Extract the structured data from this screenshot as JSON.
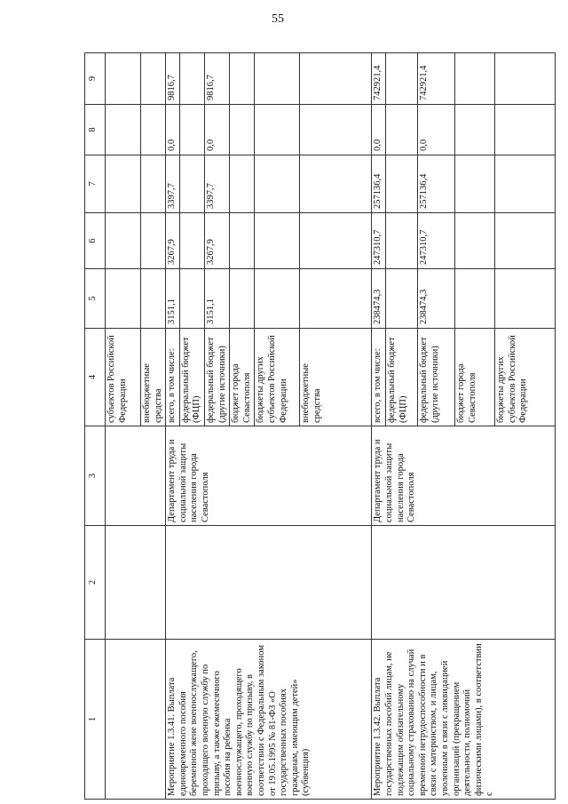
{
  "page_number": "55",
  "header": [
    "1",
    "2",
    "3",
    "4",
    "5",
    "6",
    "7",
    "8",
    "9"
  ],
  "continuation": {
    "rows": [
      {
        "source": "субъектов Российской Федерации"
      },
      {
        "source": "внебюджетные средства"
      }
    ]
  },
  "measures": [
    {
      "name": "Мероприятие 1.3.41. Выплата единовременного пособия беременной жене военнослужащего, проходящего военную службу по призыву, а также ежемесячного пособия на ребенка военнослужащего, проходящего военную службу по призыву, в соответствии с Федеральным законом от 19.05.1995 № 81-ФЗ «О государственных пособиях гражданам, имеющим детей» (субвенция)",
      "col2": "",
      "executor": "Департамент труда и социальной защиты населения города Севастополя",
      "rows": [
        {
          "source": "всего, в том числе:",
          "c5": "3151,1",
          "c6": "3267,9",
          "c7": "3397,7",
          "c8": "0,0",
          "c9": "9816,7"
        },
        {
          "source": "федеральный бюджет (ФЦП)",
          "c5": "",
          "c6": "",
          "c7": "",
          "c8": "",
          "c9": ""
        },
        {
          "source": "федеральный бюджет (другие источники)",
          "c5": "3151,1",
          "c6": "3267,9",
          "c7": "3397,7",
          "c8": "0,0",
          "c9": "9816,7"
        },
        {
          "source": "бюджет города Севастополя",
          "c5": "",
          "c6": "",
          "c7": "",
          "c8": "",
          "c9": ""
        },
        {
          "source": "бюджеты других субъектов Российской Федерации",
          "c5": "",
          "c6": "",
          "c7": "",
          "c8": "",
          "c9": ""
        },
        {
          "source": "внебюджетные средства",
          "c5": "",
          "c6": "",
          "c7": "",
          "c8": "",
          "c9": ""
        }
      ]
    },
    {
      "name": "Мероприятие 1.3.42. Выплата государственных пособий лицам, не подлежащим обязательному социальному страхованию на случай временной нетрудоспособности и в связи с материнством, и лицам, уволенным в связи с ликвидацией организаций (прекращением деятельности, полномочий физическими лицами), в соответствии с",
      "col2": "",
      "executor": "Департамент труда и социальной защиты населения города Севастополя",
      "rows": [
        {
          "source": "всего, в том числе:",
          "c5": "238474,3",
          "c6": "247310,7",
          "c7": "257136,4",
          "c8": "0,0",
          "c9": "742921,4"
        },
        {
          "source": "федеральный бюджет (ФЦП)",
          "c5": "",
          "c6": "",
          "c7": "",
          "c8": "",
          "c9": ""
        },
        {
          "source": "федеральный бюджет (другие источники)",
          "c5": "238474,3",
          "c6": "247310,7",
          "c7": "257136,4",
          "c8": "0,0",
          "c9": "742921,4"
        },
        {
          "source": "бюджет города Севастополя",
          "c5": "",
          "c6": "",
          "c7": "",
          "c8": "",
          "c9": ""
        },
        {
          "source": "бюджеты других субъектов Российской Федерации",
          "c5": "",
          "c6": "",
          "c7": "",
          "c8": "",
          "c9": ""
        }
      ]
    }
  ]
}
